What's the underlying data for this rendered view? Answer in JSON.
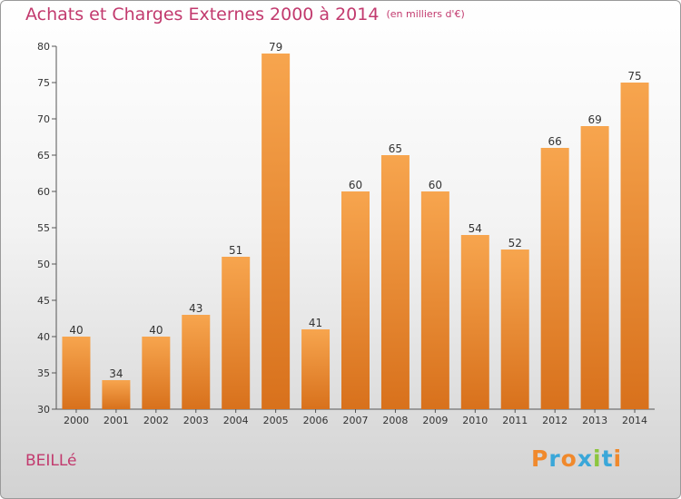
{
  "chart_data": {
    "type": "bar",
    "title": "Achats et Charges Externes 2000 à 2014",
    "unit": "(en milliers d'€)",
    "categories": [
      "2000",
      "2001",
      "2002",
      "2003",
      "2004",
      "2005",
      "2006",
      "2007",
      "2008",
      "2009",
      "2010",
      "2011",
      "2012",
      "2013",
      "2014"
    ],
    "values": [
      40,
      34,
      40,
      43,
      51,
      79,
      41,
      60,
      65,
      60,
      54,
      52,
      66,
      69,
      75
    ],
    "ylim": [
      30,
      80
    ],
    "yticks": [
      30,
      35,
      40,
      45,
      50,
      55,
      60,
      65,
      70,
      75,
      80
    ],
    "grid": false,
    "bar_color": "#e8842e"
  },
  "place": "BEILLé",
  "logo": {
    "text": "Proxiti",
    "colors": [
      "#f0892c",
      "#3aa7d9",
      "#f0892c",
      "#3aa7d9",
      "#8cc63f",
      "#3aa7d9",
      "#f0892c"
    ]
  }
}
